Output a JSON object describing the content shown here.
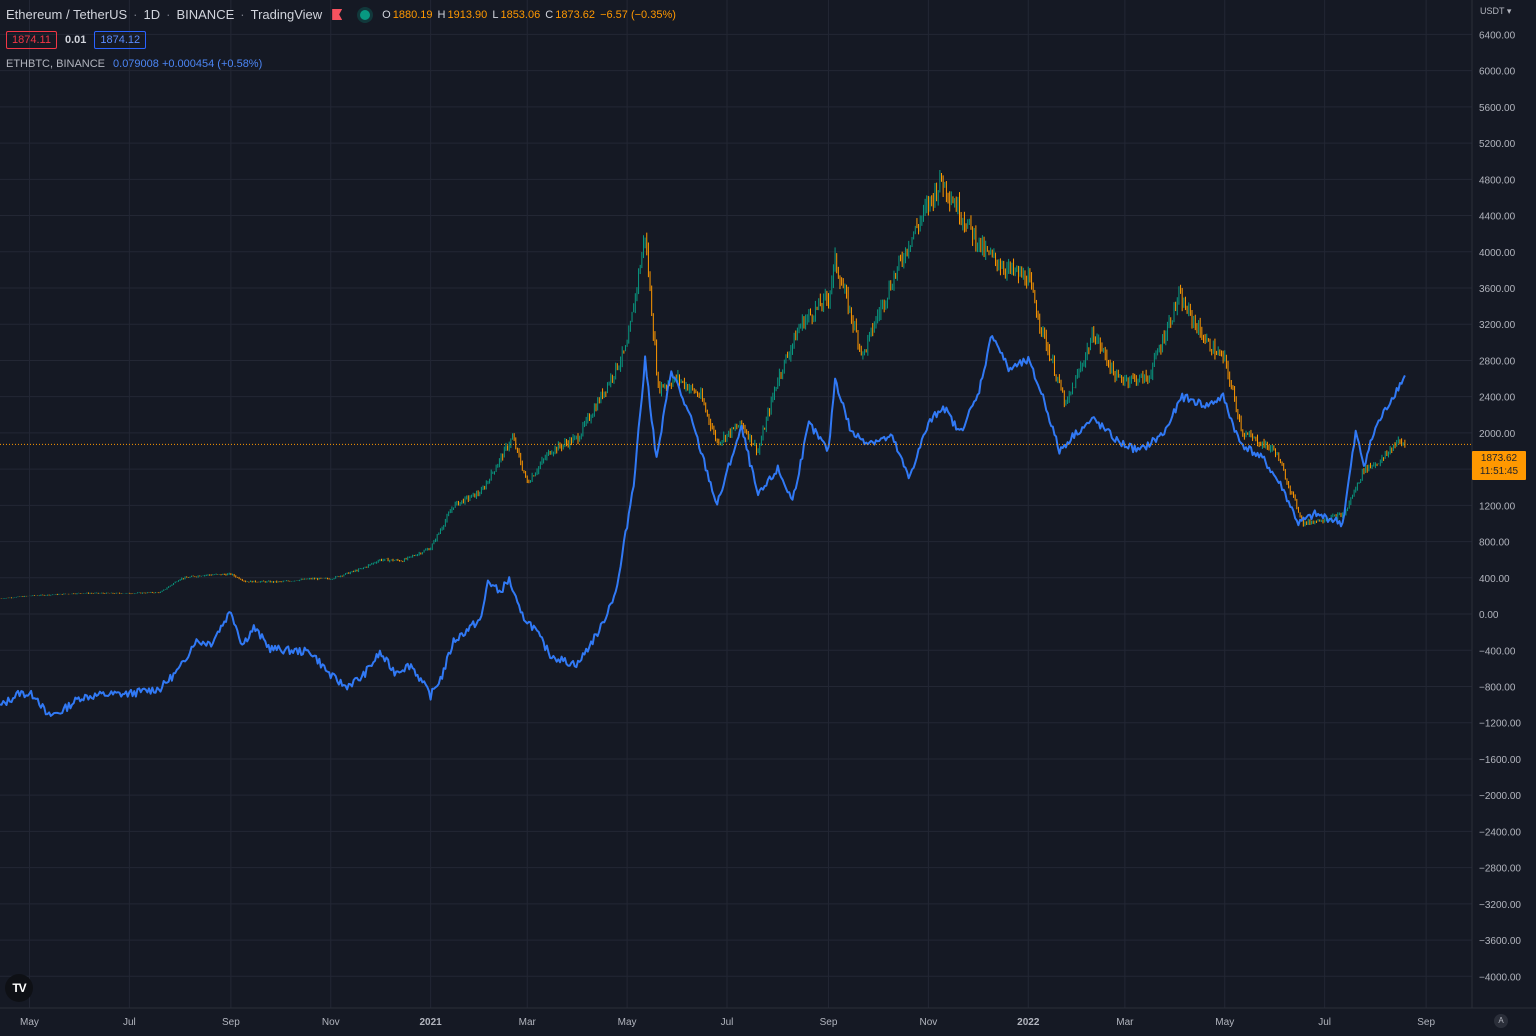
{
  "header": {
    "symbol": "Ethereum / TetherUS",
    "interval": "1D",
    "exchange": "BINANCE",
    "source": "TradingView",
    "ohlc": {
      "o_label": "O",
      "o": "1880.19",
      "h_label": "H",
      "h": "1913.90",
      "l_label": "L",
      "l": "1853.06",
      "c_label": "C",
      "c": "1873.62",
      "change": "−6.57 (−0.35%)"
    }
  },
  "spread": {
    "bid": "1874.11",
    "spread": "0.01",
    "ask": "1874.12"
  },
  "compare": {
    "name": "ETHBTC, BINANCE",
    "values": "0.079008 +0.000454 (+0.58%)"
  },
  "axis": {
    "currency": "USDT ▾"
  },
  "price_tag": {
    "price": "1873.62",
    "countdown": "11:51:45"
  },
  "logo": "TV",
  "auto_button": "A",
  "colors": {
    "up": "#089981",
    "down": "#ff9800",
    "compare_line": "#3179f5",
    "background": "#151924",
    "grid": "#232734"
  },
  "chart_data": {
    "type": "candlestick + line",
    "y_axis": {
      "ticks": [
        6400,
        6000,
        5600,
        5200,
        4800,
        4400,
        4000,
        3600,
        3200,
        2800,
        2400,
        2000,
        1600,
        1200,
        800,
        400,
        0,
        -400,
        -800,
        -1200,
        -1600,
        -2000,
        -2400,
        -2800,
        -3200,
        -3600,
        -4000
      ],
      "tick_labels": [
        "6400.00",
        "6000.00",
        "5600.00",
        "5200.00",
        "4800.00",
        "4400.00",
        "4000.00",
        "3600.00",
        "3200.00",
        "2800.00",
        "2400.00",
        "2000.00",
        "1600.00",
        "1200.00",
        "800.00",
        "400.00",
        "0.00",
        "−400.00",
        "−800.00",
        "−1200.00",
        "−1600.00",
        "−2000.00",
        "−2400.00",
        "−2800.00",
        "−3200.00",
        "−3600.00",
        "−4000.00"
      ],
      "range": [
        -4350,
        6780
      ]
    },
    "x_axis": {
      "range": [
        "2020-04-13",
        "2022-09-29"
      ],
      "ticks": [
        "2020-05-01",
        "2020-07-01",
        "2020-09-01",
        "2020-11-01",
        "2021-01-01",
        "2021-03-01",
        "2021-05-01",
        "2021-07-01",
        "2021-09-01",
        "2021-11-01",
        "2022-01-01",
        "2022-03-01",
        "2022-05-01",
        "2022-07-01",
        "2022-09-01"
      ],
      "tick_labels": [
        "May",
        "Jul",
        "Sep",
        "Nov",
        "2021",
        "Mar",
        "May",
        "Jul",
        "Sep",
        "Nov",
        "2022",
        "Mar",
        "May",
        "Jul",
        "Sep"
      ]
    },
    "last_price": 1873.62,
    "series": [
      {
        "type": "candlestick",
        "close": [
          [
            "2020-04-13",
            170
          ],
          [
            "2020-05-01",
            200
          ],
          [
            "2020-06-01",
            230
          ],
          [
            "2020-07-01",
            228
          ],
          [
            "2020-07-20",
            240
          ],
          [
            "2020-08-01",
            390
          ],
          [
            "2020-08-15",
            430
          ],
          [
            "2020-09-01",
            440
          ],
          [
            "2020-09-10",
            360
          ],
          [
            "2020-10-01",
            355
          ],
          [
            "2020-10-20",
            390
          ],
          [
            "2020-11-01",
            390
          ],
          [
            "2020-11-20",
            500
          ],
          [
            "2020-12-01",
            600
          ],
          [
            "2020-12-15",
            590
          ],
          [
            "2021-01-01",
            730
          ],
          [
            "2021-01-15",
            1200
          ],
          [
            "2021-02-01",
            1350
          ],
          [
            "2021-02-20",
            1950
          ],
          [
            "2021-03-01",
            1450
          ],
          [
            "2021-03-15",
            1800
          ],
          [
            "2021-04-01",
            1950
          ],
          [
            "2021-04-15",
            2400
          ],
          [
            "2021-05-01",
            2950
          ],
          [
            "2021-05-12",
            4200
          ],
          [
            "2021-05-20",
            2500
          ],
          [
            "2021-06-01",
            2600
          ],
          [
            "2021-06-15",
            2400
          ],
          [
            "2021-06-25",
            1900
          ],
          [
            "2021-07-10",
            2100
          ],
          [
            "2021-07-20",
            1800
          ],
          [
            "2021-08-01",
            2600
          ],
          [
            "2021-08-15",
            3200
          ],
          [
            "2021-09-01",
            3500
          ],
          [
            "2021-09-05",
            3900
          ],
          [
            "2021-09-22",
            2850
          ],
          [
            "2021-10-01",
            3300
          ],
          [
            "2021-10-20",
            4100
          ],
          [
            "2021-11-09",
            4800
          ],
          [
            "2021-11-25",
            4300
          ],
          [
            "2021-12-05",
            4000
          ],
          [
            "2021-12-20",
            3800
          ],
          [
            "2022-01-01",
            3700
          ],
          [
            "2022-01-10",
            3100
          ],
          [
            "2022-01-24",
            2300
          ],
          [
            "2022-02-10",
            3100
          ],
          [
            "2022-02-24",
            2600
          ],
          [
            "2022-03-15",
            2600
          ],
          [
            "2022-04-03",
            3500
          ],
          [
            "2022-04-20",
            3000
          ],
          [
            "2022-05-01",
            2800
          ],
          [
            "2022-05-12",
            2000
          ],
          [
            "2022-06-01",
            1800
          ],
          [
            "2022-06-18",
            1000
          ],
          [
            "2022-07-01",
            1050
          ],
          [
            "2022-07-13",
            1100
          ],
          [
            "2022-07-25",
            1600
          ],
          [
            "2022-08-05",
            1700
          ],
          [
            "2022-08-14",
            1900
          ],
          [
            "2022-08-19",
            1873.62
          ]
        ]
      },
      {
        "name": "ETHBTC, BINANCE",
        "type": "line",
        "points": [
          [
            "2020-04-13",
            -1020
          ],
          [
            "2020-04-25",
            -870
          ],
          [
            "2020-05-05",
            -900
          ],
          [
            "2020-05-12",
            -1130
          ],
          [
            "2020-05-20",
            -1080
          ],
          [
            "2020-06-01",
            -920
          ],
          [
            "2020-06-15",
            -890
          ],
          [
            "2020-07-01",
            -880
          ],
          [
            "2020-07-20",
            -820
          ],
          [
            "2020-08-01",
            -600
          ],
          [
            "2020-08-10",
            -300
          ],
          [
            "2020-08-20",
            -320
          ],
          [
            "2020-09-01",
            40
          ],
          [
            "2020-09-08",
            -340
          ],
          [
            "2020-09-15",
            -150
          ],
          [
            "2020-09-25",
            -380
          ],
          [
            "2020-10-05",
            -400
          ],
          [
            "2020-10-20",
            -420
          ],
          [
            "2020-11-01",
            -680
          ],
          [
            "2020-11-10",
            -800
          ],
          [
            "2020-11-20",
            -700
          ],
          [
            "2020-12-01",
            -430
          ],
          [
            "2020-12-10",
            -640
          ],
          [
            "2020-12-20",
            -560
          ],
          [
            "2021-01-01",
            -900
          ],
          [
            "2021-01-08",
            -680
          ],
          [
            "2021-01-15",
            -300
          ],
          [
            "2021-01-25",
            -150
          ],
          [
            "2021-02-01",
            -50
          ],
          [
            "2021-02-05",
            370
          ],
          [
            "2021-02-12",
            240
          ],
          [
            "2021-02-18",
            380
          ],
          [
            "2021-02-25",
            0
          ],
          [
            "2021-03-05",
            -150
          ],
          [
            "2021-03-15",
            -450
          ],
          [
            "2021-03-25",
            -530
          ],
          [
            "2021-04-01",
            -550
          ],
          [
            "2021-04-15",
            -150
          ],
          [
            "2021-04-25",
            300
          ],
          [
            "2021-05-05",
            1450
          ],
          [
            "2021-05-12",
            2800
          ],
          [
            "2021-05-19",
            1700
          ],
          [
            "2021-05-28",
            2700
          ],
          [
            "2021-06-10",
            2100
          ],
          [
            "2021-06-25",
            1200
          ],
          [
            "2021-07-05",
            1800
          ],
          [
            "2021-07-10",
            2050
          ],
          [
            "2021-07-20",
            1300
          ],
          [
            "2021-08-01",
            1600
          ],
          [
            "2021-08-10",
            1250
          ],
          [
            "2021-08-20",
            2100
          ],
          [
            "2021-09-01",
            1800
          ],
          [
            "2021-09-05",
            2600
          ],
          [
            "2021-09-15",
            2000
          ],
          [
            "2021-09-25",
            1900
          ],
          [
            "2021-10-10",
            1950
          ],
          [
            "2021-10-20",
            1500
          ],
          [
            "2021-11-01",
            2100
          ],
          [
            "2021-11-10",
            2300
          ],
          [
            "2021-11-20",
            2000
          ],
          [
            "2021-12-01",
            2400
          ],
          [
            "2021-12-10",
            3100
          ],
          [
            "2021-12-20",
            2700
          ],
          [
            "2022-01-01",
            2800
          ],
          [
            "2022-01-10",
            2400
          ],
          [
            "2022-01-20",
            1800
          ],
          [
            "2022-01-30",
            2000
          ],
          [
            "2022-02-10",
            2150
          ],
          [
            "2022-02-25",
            1900
          ],
          [
            "2022-03-10",
            1800
          ],
          [
            "2022-03-25",
            2000
          ],
          [
            "2022-04-05",
            2400
          ],
          [
            "2022-04-20",
            2300
          ],
          [
            "2022-04-30",
            2400
          ],
          [
            "2022-05-10",
            1900
          ],
          [
            "2022-05-25",
            1700
          ],
          [
            "2022-06-05",
            1400
          ],
          [
            "2022-06-15",
            1000
          ],
          [
            "2022-06-25",
            1100
          ],
          [
            "2022-07-05",
            1050
          ],
          [
            "2022-07-12",
            1000
          ],
          [
            "2022-07-20",
            2000
          ],
          [
            "2022-07-25",
            1650
          ],
          [
            "2022-08-01",
            2050
          ],
          [
            "2022-08-10",
            2350
          ],
          [
            "2022-08-19",
            2630
          ]
        ]
      }
    ]
  }
}
